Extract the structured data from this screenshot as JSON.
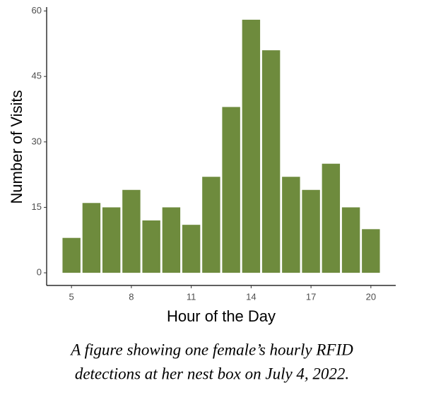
{
  "chart_data": {
    "type": "bar",
    "xlabel": "Hour of the Day",
    "ylabel": "Number of Visits",
    "caption": [
      "A figure showing one female’s hourly RFID",
      "detections at her nest box on July 4, 2022."
    ],
    "x": [
      5,
      6,
      7,
      8,
      9,
      10,
      11,
      12,
      13,
      14,
      15,
      16,
      17,
      18,
      19,
      20
    ],
    "values": [
      8,
      16,
      15,
      19,
      12,
      15,
      11,
      22,
      38,
      58,
      51,
      22,
      19,
      25,
      15,
      10
    ],
    "color": "#6e8b3d",
    "xlim": [
      3.755,
      21.245
    ],
    "xticks": [
      5,
      8,
      11,
      14,
      17,
      20
    ],
    "ylim": [
      -2.9,
      60.9
    ],
    "yticks": [
      0,
      15,
      30,
      45,
      60
    ]
  }
}
